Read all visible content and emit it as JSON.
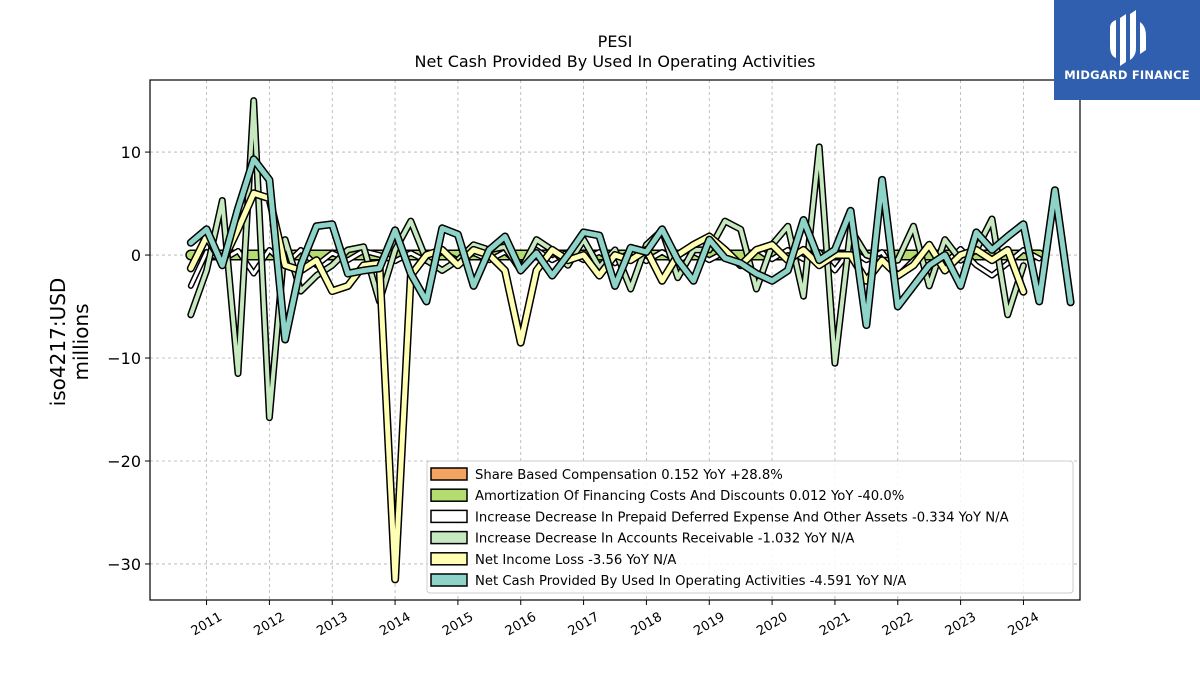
{
  "brand": {
    "name": "MIDGARD FINANCE"
  },
  "chart_data": {
    "type": "line",
    "title": "PESI",
    "subtitle": "Net Cash Provided By Used In Operating Activities",
    "ylabel_line1": "iso4217:USD",
    "ylabel_line2": "millions",
    "xlabel": "",
    "ylim": [
      -33.5,
      17
    ],
    "xlim": [
      2010.1,
      2024.9
    ],
    "yticks": [
      10,
      0,
      -10,
      -20,
      -30
    ],
    "ytick_labels": [
      "10",
      "0",
      "−10",
      "−20",
      "−30"
    ],
    "xticks": [
      2011,
      2012,
      2013,
      2014,
      2015,
      2016,
      2017,
      2018,
      2019,
      2020,
      2021,
      2022,
      2023,
      2024
    ],
    "xtick_labels": [
      "2011",
      "2012",
      "2013",
      "2014",
      "2015",
      "2016",
      "2017",
      "2018",
      "2019",
      "2020",
      "2021",
      "2022",
      "2023",
      "2024"
    ],
    "grid": true,
    "legend_position": "lower-right",
    "x_start": 2010.75,
    "x_step": 0.25,
    "series": [
      {
        "name": "Share Based Compensation",
        "legend_label": "Share Based Compensation  0.152 YoY +28.8%",
        "color": "#f4a460",
        "width": 3,
        "values": [
          0.1,
          0.1,
          0.1,
          0.1,
          0.1,
          0.1,
          0.1,
          0.1,
          0.1,
          0.1,
          0.1,
          0.1,
          0.1,
          0.1,
          0.1,
          0.1,
          0.1,
          0.1,
          0.1,
          0.1,
          0.1,
          0.1,
          0.1,
          0.1,
          0.1,
          0.1,
          0.1,
          0.1,
          0.1,
          0.1,
          0.1,
          0.1,
          0.1,
          0.1,
          0.1,
          0.1,
          0.1,
          0.1,
          0.1,
          0.1,
          0.1,
          0.1,
          0.1,
          0.1,
          0.1,
          0.1,
          0.1,
          0.1,
          0.1,
          0.1,
          0.1,
          0.1,
          0.1,
          0.1,
          0.15
        ]
      },
      {
        "name": "Amortization Of Financing Costs And Discounts",
        "legend_label": "Amortization Of Financing Costs And Discounts  0.012 YoY -40.0%",
        "color": "#b5dc6e",
        "width": 8,
        "values": [
          0,
          0,
          0,
          0,
          0,
          0,
          0,
          0,
          0,
          0,
          0,
          0,
          0,
          0,
          0,
          0,
          0,
          0,
          0,
          0,
          0,
          0,
          0,
          0,
          0,
          0,
          0,
          0,
          0,
          0,
          0,
          0,
          0,
          0,
          0,
          0,
          0,
          0,
          0,
          0,
          0,
          0,
          0,
          0,
          0,
          0,
          0,
          0,
          0,
          0,
          0,
          0,
          0,
          0,
          0.012
        ]
      },
      {
        "name": "Increase Decrease In Prepaid Deferred Expense And Other Assets",
        "legend_label": "Increase Decrease In Prepaid Deferred Expense And Other Assets  -0.334 YoY N/A",
        "color": "#ffffff",
        "width": 3,
        "values": [
          -3.0,
          0.3,
          -0.5,
          0.4,
          -1.8,
          0.5,
          -1.0,
          0.5,
          -1.0,
          0.2,
          -0.5,
          0.4,
          0.0,
          -0.6,
          0.2,
          -0.6,
          0.3,
          -0.5,
          0.2,
          -0.5,
          0.3,
          -1.0,
          0.5,
          -0.5,
          0.3,
          -0.5,
          0.3,
          -0.8,
          0.4,
          -0.6,
          0.3,
          -0.6,
          0.3,
          -0.5,
          0.3,
          -1.0,
          0.6,
          -0.4,
          0.5,
          -0.4,
          0.3,
          -1.5,
          0.5,
          -0.5,
          0.3,
          -2.0,
          -0.5,
          0.8,
          -0.8,
          0.6,
          -1.0,
          -2.0,
          -0.8,
          0.5,
          -0.334
        ]
      },
      {
        "name": "Increase Decrease In Accounts Receivable",
        "legend_label": "Increase Decrease In Accounts Receivable  -1.032 YoY N/A",
        "color": "#c7e9c0",
        "width": 4,
        "values": [
          -5.8,
          -1.5,
          5.3,
          -11.5,
          15.0,
          -15.8,
          1.5,
          -3.5,
          -2.0,
          -1.0,
          0.5,
          0.8,
          -4.5,
          0.5,
          3.3,
          -0.5,
          -1.5,
          -0.5,
          1.0,
          0.5,
          0.8,
          -1.5,
          1.5,
          0.5,
          -1.0,
          1.5,
          -1.2,
          0.5,
          -3.3,
          1.0,
          2.4,
          -2.2,
          0.5,
          0.5,
          3.3,
          2.5,
          -3.3,
          1.0,
          2.8,
          -4.0,
          10.5,
          -10.5,
          2.5,
          0.0,
          -0.5,
          -0.5,
          2.8,
          -3.0,
          1.5,
          -0.5,
          0.5,
          3.5,
          -5.8,
          -1.032
        ]
      },
      {
        "name": "Net Income Loss",
        "legend_label": "Net Income Loss  -3.56 YoY N/A",
        "color": "#ffffb3",
        "width": 5,
        "values": [
          -1.3,
          1.8,
          -0.7,
          2.5,
          6.0,
          5.5,
          -1.0,
          -1.5,
          -0.5,
          -3.5,
          -3.0,
          -1.0,
          -0.8,
          -31.5,
          -2.0,
          0.0,
          0.5,
          -1.0,
          0.5,
          0.0,
          -1.5,
          -8.5,
          -1.5,
          0.5,
          -0.5,
          0.0,
          -2.0,
          0.0,
          -0.5,
          0.5,
          -2.5,
          0.0,
          1.0,
          1.8,
          0.5,
          -1.0,
          0.5,
          1.0,
          -0.5,
          0.5,
          -1.0,
          0.0,
          0.0,
          -2.5,
          -0.5,
          -2.0,
          -1.0,
          1.0,
          -1.5,
          0.0,
          0.5,
          -0.5,
          0.5,
          -3.56
        ]
      },
      {
        "name": "Net Cash Provided By Used In Operating Activities",
        "legend_label": "Net Cash Provided By Used In Operating Activities  -4.591 YoY N/A",
        "color": "#8dd3c7",
        "width": 5,
        "values": [
          1.2,
          2.5,
          -1.0,
          4.5,
          9.3,
          7.3,
          -8.2,
          -1.0,
          2.8,
          3.0,
          -1.8,
          -1.5,
          -1.3,
          2.4,
          -1.8,
          -4.5,
          2.6,
          2.0,
          -3.0,
          0.5,
          1.8,
          -1.5,
          0.2,
          -2.0,
          0.0,
          2.2,
          1.9,
          -3.0,
          0.7,
          0.3,
          2.5,
          -0.5,
          -2.5,
          1.5,
          -0.3,
          -0.8,
          -1.8,
          -2.5,
          -1.5,
          3.4,
          -0.5,
          0.5,
          4.3,
          -6.8,
          7.3,
          -5.0,
          -3.0,
          -1.0,
          0.0,
          -3.0,
          2.2,
          0.5,
          1.8,
          3.0,
          -4.5,
          6.3,
          -4.591
        ]
      }
    ]
  }
}
